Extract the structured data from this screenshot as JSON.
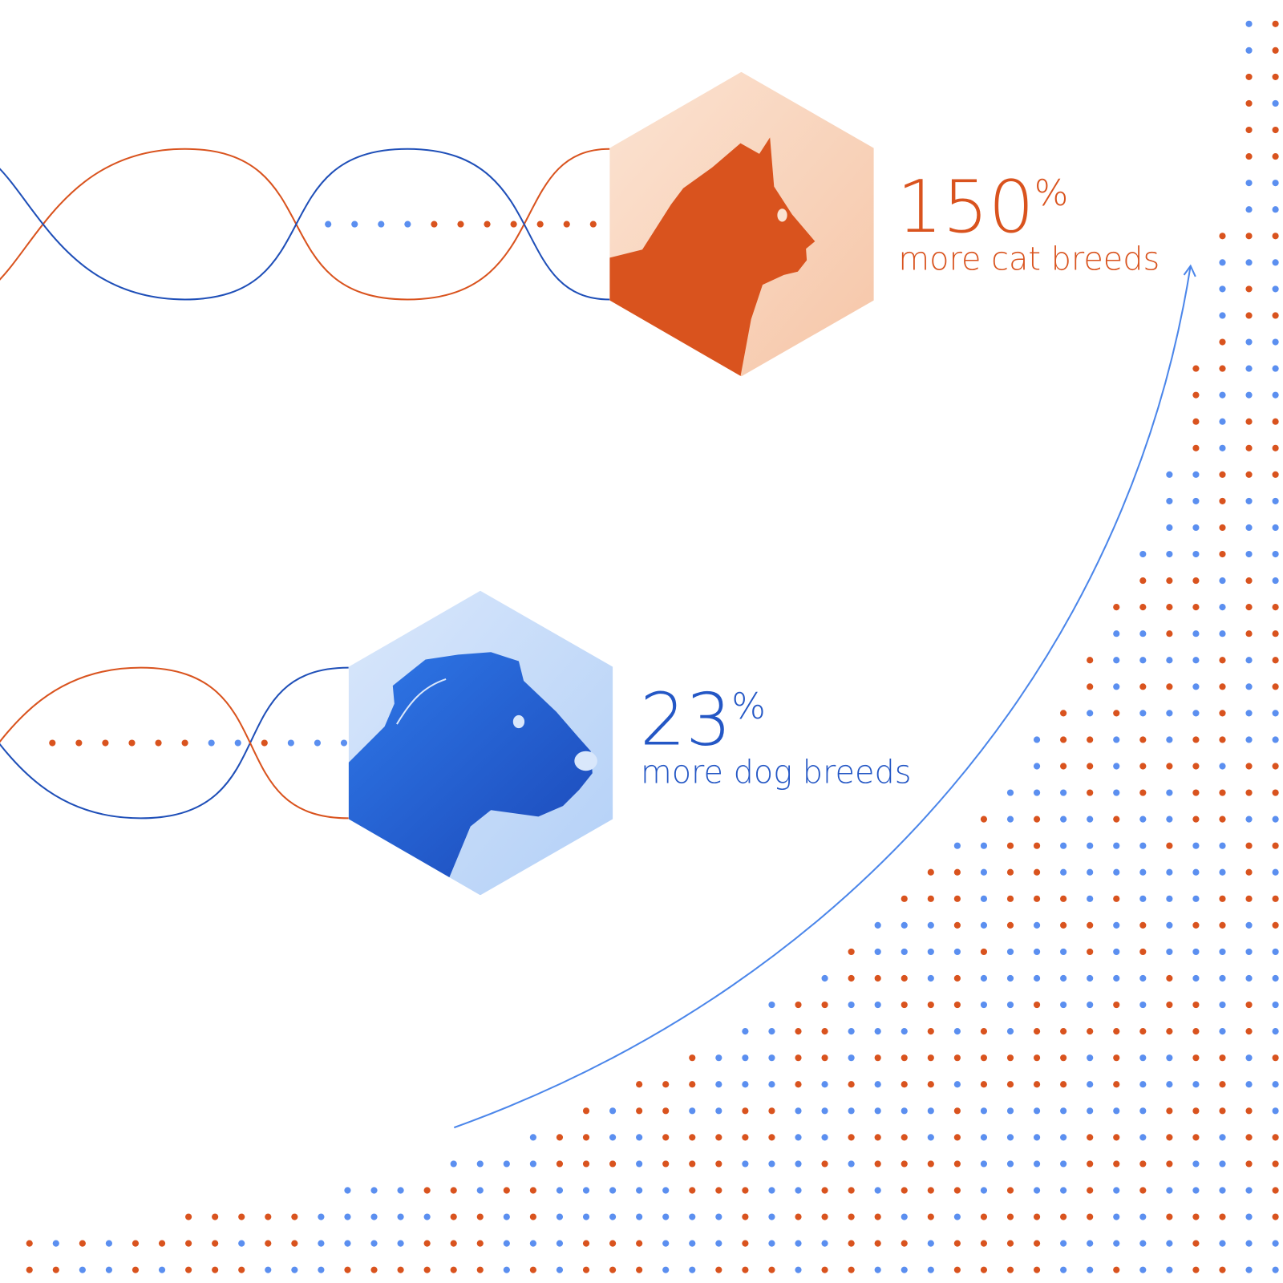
{
  "stats": [
    {
      "number": "150",
      "unit": "%",
      "label": "more cat breeds"
    },
    {
      "number": "23",
      "unit": "%",
      "label": "more dog breeds"
    }
  ]
}
